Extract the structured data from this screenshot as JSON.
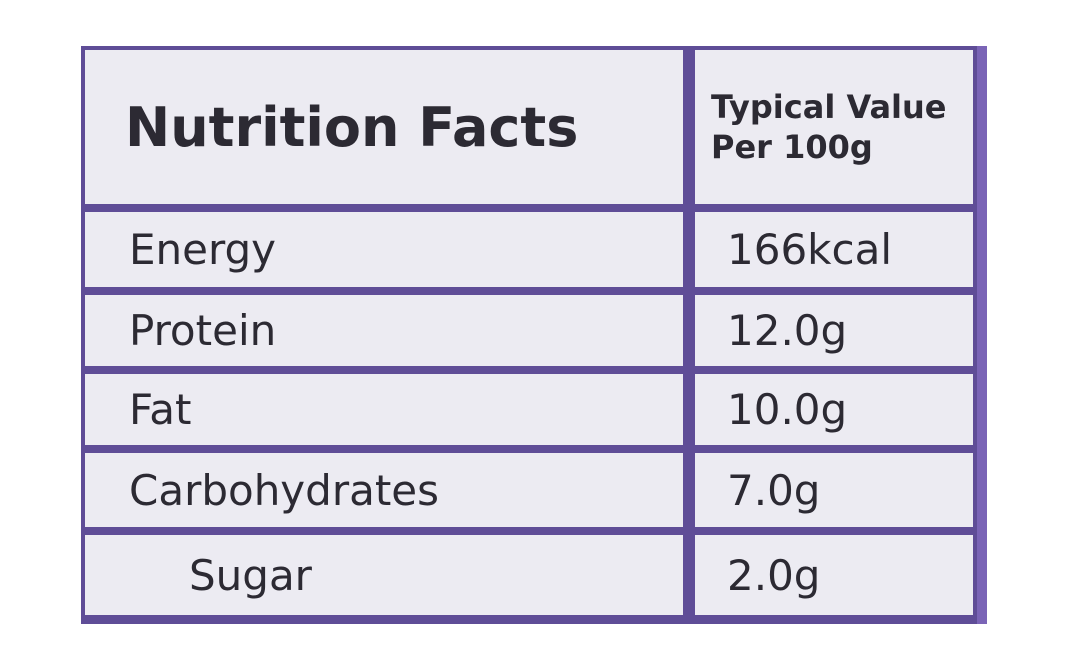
{
  "table": {
    "header_title": "Nutrition Facts",
    "value_header_line1": "Typical Value",
    "value_header_line2": "Per 100g",
    "rows": [
      {
        "nutrient": "Energy",
        "value": "166kcal"
      },
      {
        "nutrient": "Protein",
        "value": "12.0g"
      },
      {
        "nutrient": "Fat",
        "value": "10.0g"
      },
      {
        "nutrient": "Carbohydrates",
        "value": "7.0g"
      },
      {
        "nutrient": "Sugar",
        "value": "2.0g"
      }
    ]
  },
  "colors": {
    "panel_border": "#5f4d97",
    "cell_background": "#ecebf2",
    "text": "#2c2a33"
  }
}
